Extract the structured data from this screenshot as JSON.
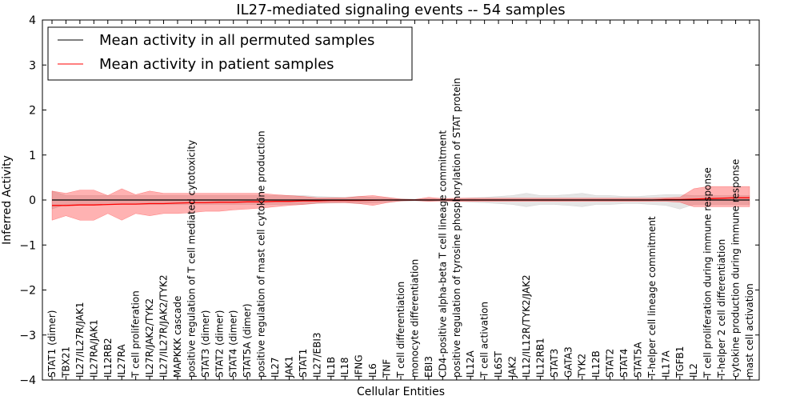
{
  "chart_data": {
    "type": "line",
    "title": "IL27-mediated signaling events -- 54 samples",
    "xlabel": "Cellular Entities",
    "ylabel": "Inferred Activity",
    "ylim": [
      -4,
      4
    ],
    "yticks": [
      -4,
      -3,
      -2,
      -1,
      0,
      1,
      2,
      3,
      4
    ],
    "ytick_labels": [
      "−4",
      "−3",
      "−2",
      "−1",
      "0",
      "1",
      "2",
      "3",
      "4"
    ],
    "legend": {
      "position": "top-left",
      "entries": [
        {
          "label": "Mean activity in all permuted samples",
          "color": "#000000"
        },
        {
          "label": "Mean activity in patient samples",
          "color": "#ff0000"
        }
      ]
    },
    "categories": [
      "STAT1 (dimer)",
      "TBX21",
      "IL27/IL27R/JAK1",
      "IL27RA/JAK1",
      "IL12RB2",
      "IL27RA",
      "T cell proliferation",
      "IL27R/JAK2/TYK2",
      "IL27/IL27R/JAK2/TYK2",
      "MAPKKK cascade",
      "positive regulation of T cell mediated cytotoxicity",
      "STAT3 (dimer)",
      "STAT2 (dimer)",
      "STAT4 (dimer)",
      "STAT5A (dimer)",
      "positive regulation of mast cell cytokine production",
      "IL27",
      "JAK1",
      "STAT1",
      "IL27/EBI3",
      "IL1B",
      "IL18",
      "IFNG",
      "IL6",
      "TNF",
      "T cell differentiation",
      "monocyte differentiation",
      "EBI3",
      "CD4-positive alpha-beta T cell lineage commitment",
      "positive regulation of tyrosine phosphorylation of STAT protein",
      "IL12A",
      "T cell activation",
      "IL6ST",
      "JAK2",
      "IL12/IL12R/TYK2/JAK2",
      "IL12RB1",
      "STAT3",
      "GATA3",
      "TYK2",
      "IL12B",
      "STAT2",
      "STAT4",
      "STAT5A",
      "T-helper cell lineage commitment",
      "IL17A",
      "TGFB1",
      "IL2",
      "T cell proliferation during immune response",
      "T-helper 2 cell differentiation",
      "cytokine production during immune response",
      "mast cell activation"
    ],
    "series": [
      {
        "name": "Mean activity in all permuted samples",
        "color": "#000000",
        "values": [
          0.0,
          0.0,
          0.0,
          0.0,
          0.0,
          0.0,
          0.0,
          0.0,
          0.0,
          0.0,
          0.0,
          0.0,
          0.0,
          0.0,
          0.0,
          0.0,
          0.0,
          0.0,
          0.0,
          0.0,
          0.0,
          0.0,
          0.0,
          0.0,
          0.0,
          0.0,
          0.0,
          0.0,
          0.0,
          0.0,
          0.0,
          0.0,
          0.0,
          0.0,
          0.0,
          0.0,
          0.0,
          0.0,
          0.0,
          0.0,
          0.0,
          0.0,
          0.0,
          0.0,
          0.0,
          0.0,
          0.0,
          0.0,
          0.0,
          0.0,
          0.0
        ],
        "band_upper": [
          0.2,
          0.1,
          0.1,
          0.1,
          0.1,
          0.1,
          0.1,
          0.1,
          0.1,
          0.1,
          0.1,
          0.1,
          0.1,
          0.1,
          0.1,
          0.1,
          0.1,
          0.1,
          0.1,
          0.08,
          0.07,
          0.06,
          0.08,
          0.06,
          0.05,
          0.03,
          0.02,
          0.03,
          0.02,
          0.03,
          0.05,
          0.06,
          0.08,
          0.1,
          0.15,
          0.1,
          0.1,
          0.12,
          0.15,
          0.1,
          0.1,
          0.08,
          0.08,
          0.1,
          0.12,
          0.12,
          0.1,
          0.1,
          0.1,
          0.1,
          0.1
        ],
        "band_lower": [
          -0.2,
          -0.1,
          -0.1,
          -0.1,
          -0.1,
          -0.1,
          -0.1,
          -0.1,
          -0.1,
          -0.1,
          -0.1,
          -0.1,
          -0.1,
          -0.1,
          -0.1,
          -0.1,
          -0.1,
          -0.1,
          -0.1,
          -0.08,
          -0.07,
          -0.06,
          -0.08,
          -0.06,
          -0.05,
          -0.03,
          -0.02,
          -0.03,
          -0.02,
          -0.03,
          -0.05,
          -0.06,
          -0.08,
          -0.1,
          -0.15,
          -0.1,
          -0.1,
          -0.12,
          -0.15,
          -0.1,
          -0.1,
          -0.08,
          -0.08,
          -0.1,
          -0.12,
          -0.2,
          -0.1,
          -0.1,
          -0.1,
          -0.1,
          -0.1
        ]
      },
      {
        "name": "Mean activity in patient samples",
        "color": "#ff0000",
        "values": [
          -0.12,
          -0.12,
          -0.11,
          -0.11,
          -0.1,
          -0.09,
          -0.09,
          -0.08,
          -0.08,
          -0.07,
          -0.06,
          -0.06,
          -0.05,
          -0.05,
          -0.04,
          -0.04,
          -0.03,
          -0.03,
          -0.02,
          -0.02,
          -0.01,
          -0.01,
          -0.01,
          -0.005,
          0.0,
          0.0,
          0.0,
          0.0,
          0.0,
          0.0,
          0.0,
          0.0,
          0.0,
          0.0,
          0.0,
          0.0,
          0.0,
          0.0,
          0.0,
          0.0,
          0.0,
          0.0,
          0.0,
          0.0,
          0.01,
          0.01,
          0.02,
          0.03,
          0.04,
          0.05,
          0.05
        ],
        "band_upper": [
          0.2,
          0.15,
          0.22,
          0.22,
          0.1,
          0.25,
          0.12,
          0.2,
          0.15,
          0.15,
          0.15,
          0.15,
          0.15,
          0.15,
          0.15,
          0.15,
          0.12,
          0.1,
          0.08,
          0.05,
          0.05,
          0.05,
          0.08,
          0.1,
          0.06,
          0.02,
          0.01,
          0.06,
          0.03,
          0.04,
          0.04,
          0.04,
          0.04,
          0.04,
          0.04,
          0.04,
          0.04,
          0.04,
          0.04,
          0.04,
          0.04,
          0.04,
          0.04,
          0.04,
          0.05,
          0.06,
          0.25,
          0.3,
          0.3,
          0.3,
          0.3
        ],
        "band_lower": [
          -0.45,
          -0.35,
          -0.45,
          -0.45,
          -0.3,
          -0.45,
          -0.3,
          -0.35,
          -0.3,
          -0.3,
          -0.28,
          -0.25,
          -0.25,
          -0.22,
          -0.2,
          -0.18,
          -0.15,
          -0.12,
          -0.1,
          -0.07,
          -0.06,
          -0.06,
          -0.08,
          -0.12,
          -0.06,
          -0.02,
          -0.01,
          -0.03,
          -0.02,
          -0.03,
          -0.03,
          -0.03,
          -0.03,
          -0.03,
          -0.03,
          -0.03,
          -0.03,
          -0.03,
          -0.03,
          -0.03,
          -0.03,
          -0.03,
          -0.03,
          -0.03,
          -0.03,
          -0.05,
          -0.15,
          -0.15,
          -0.15,
          -0.15,
          -0.15
        ]
      }
    ]
  }
}
